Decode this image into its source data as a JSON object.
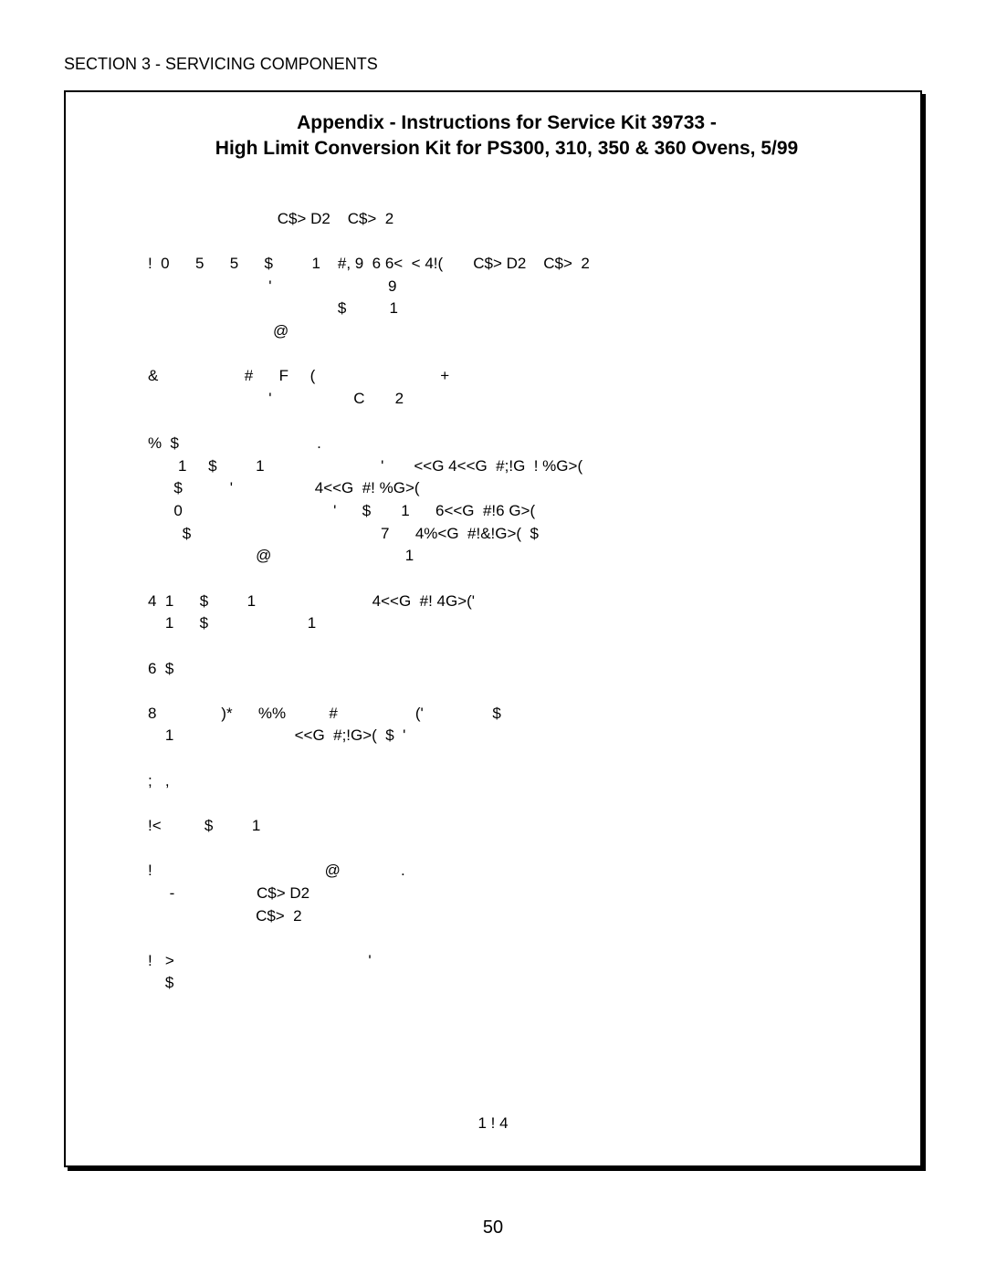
{
  "section_header": "SECTION 3 - SERVICING COMPONENTS",
  "title_line1": "Appendix - Instructions for Service Kit 39733 -",
  "title_line2": "High Limit Conversion Kit for PS300, 310, 350 & 360 Ovens, 5/99",
  "body": "                              C$> D2    C$>  2\n\n!  0      5      5      $         1    #, 9  6 6<  < 4!(       C$> D2    C$>  2\n                            '                           9\n                                            $          1\n                             @\n\n&                    #      F     (                             +\n                            '                   C       2\n\n%  $                                .\n       1     $         1                           '       <<G 4<<G  #;!G  ! %G>(\n      $           '                   4<<G  #! %G>(\n      0                                   '      $       1      6<<G  #!6 G>(\n        $                                            7      4%<G  #!&!G>(  $\n                         @                               1\n\n4  1      $         1                           4<<G  #! 4G>('\n    1      $                       1\n\n6  $\n\n8               )*      %%          #                  ('                $\n    1                            <<G  #;!G>(  $  '\n\n;   ,\n\n!<          $         1\n\n!                                        @              .\n     -                   C$> D2\n                         C$>  2\n\n!   >                                             '\n    $",
  "footer": "1   !  4",
  "page_number": "50",
  "colors": {
    "text": "#000000",
    "background": "#ffffff",
    "border": "#000000"
  },
  "fonts": {
    "header_size": 18,
    "title_size": 21,
    "body_size": 17,
    "page_num_size": 20
  }
}
